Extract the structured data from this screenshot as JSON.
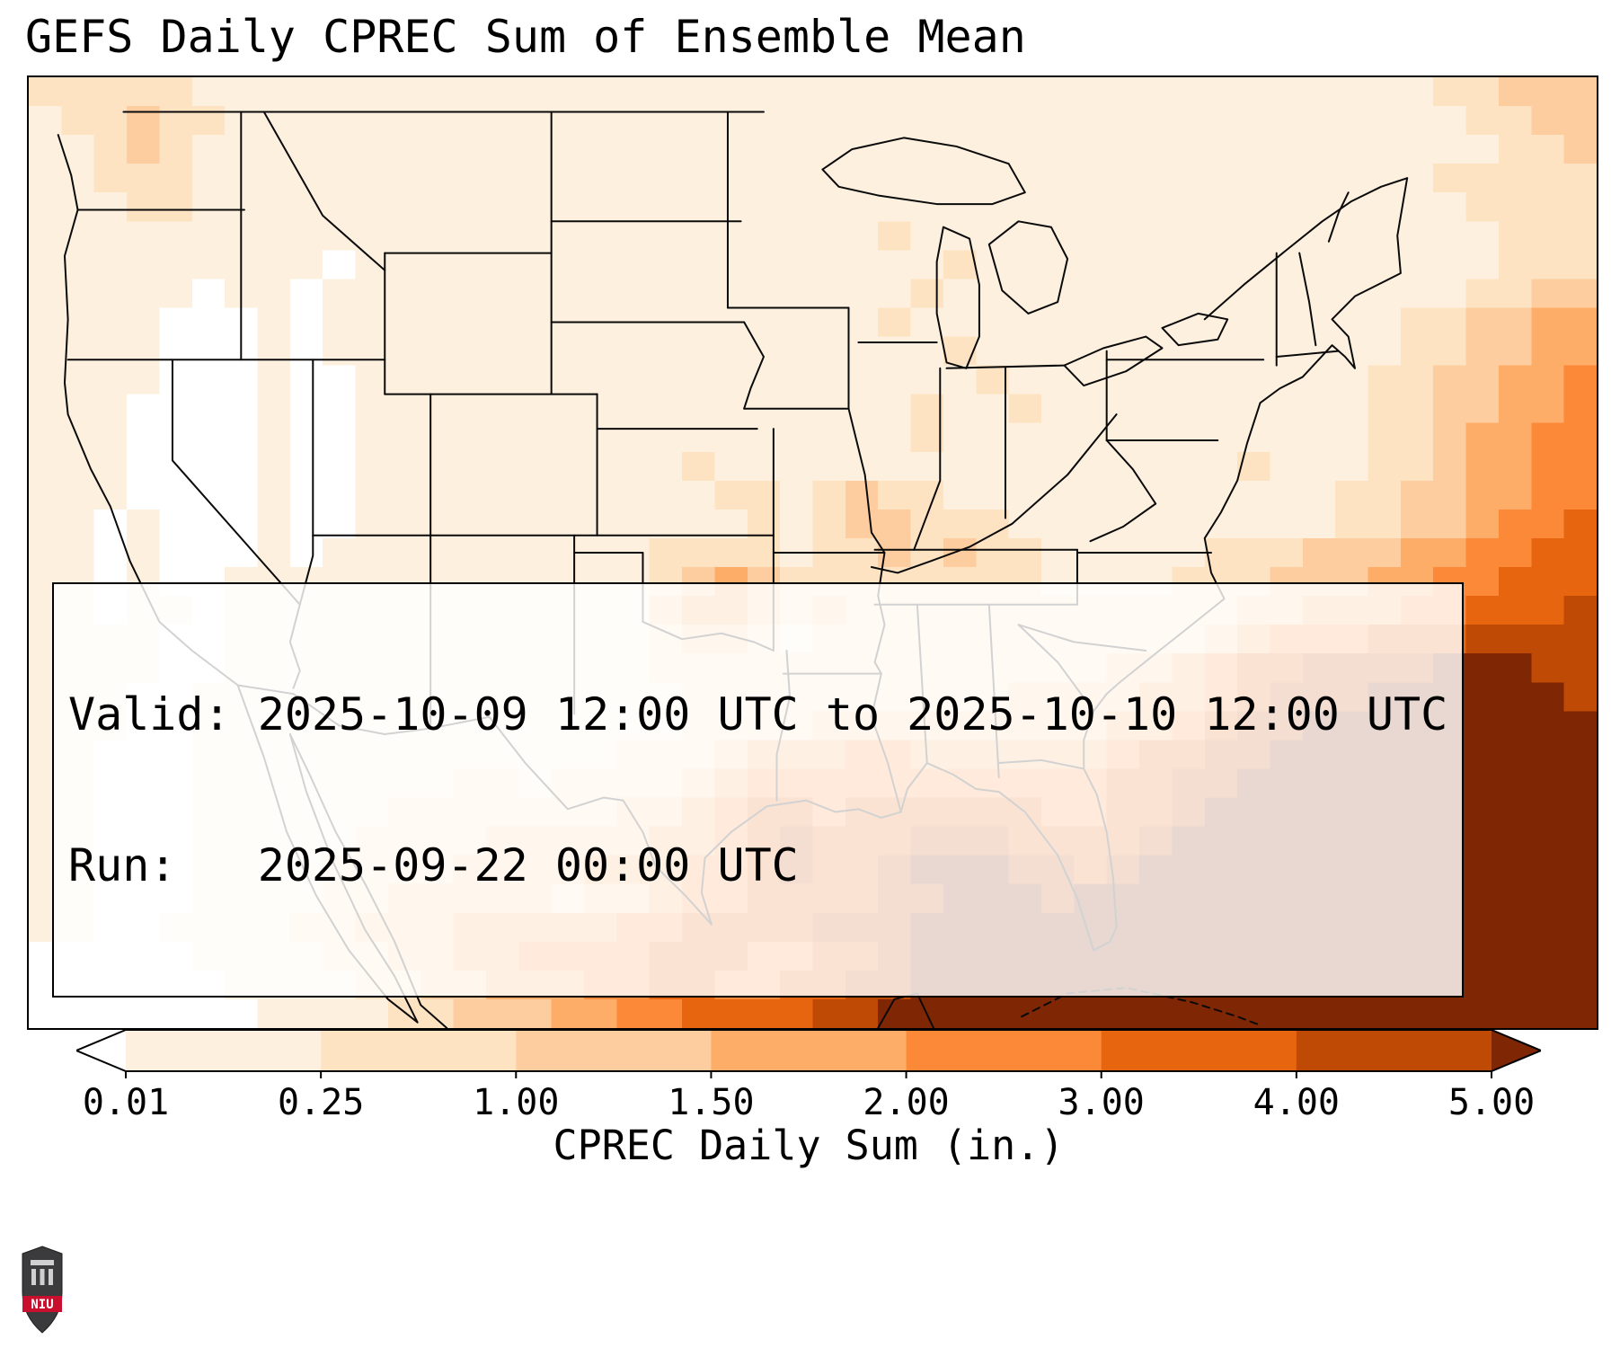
{
  "title": "GEFS Daily CPREC Sum of Ensemble Mean",
  "info_box": {
    "line1": "Valid: 2025-10-09 12:00 UTC to 2025-10-10 12:00 UTC",
    "line2": "Run:   2025-09-22 00:00 UTC"
  },
  "colorbar": {
    "label": "CPREC Daily Sum (in.)",
    "ticks": [
      "0.01",
      "0.25",
      "1.00",
      "1.50",
      "2.00",
      "3.00",
      "4.00",
      "5.00"
    ]
  },
  "logo": {
    "text": "NIU",
    "shield_color": "#3b3b3d",
    "band_color": "#c8102e"
  },
  "chart_data": {
    "type": "heatmap",
    "title": "GEFS Daily CPREC Sum of Ensemble Mean",
    "units": "in.",
    "colorbar_label": "CPREC Daily Sum (in.)",
    "colorbar_boundaries": [
      0.01,
      0.25,
      1.0,
      1.5,
      2.0,
      3.0,
      4.0,
      5.0
    ],
    "colorbar_extend": "both",
    "level_values": [
      "<0.01",
      "0.01-0.25",
      "0.25-1.00",
      "1.00-1.50",
      "1.50-2.00",
      "2.00-3.00",
      "3.00-4.00",
      "4.00-5.00",
      ">5.00"
    ],
    "level_colors": [
      "#ffffff",
      "#fdf0df",
      "#fee3c3",
      "#fdcd9f",
      "#fdad68",
      "#fb8938",
      "#e8650f",
      "#bf4a05",
      "#7f2704"
    ],
    "grid_rows": [
      "222221111111111111111111111111111111111111122333",
      "122322111111111111111111111111111111111111112233",
      "112321111111111111111111111111111111111111111223",
      "112221111111111111111111111111111111111111122222",
      "111221111111111111111111111111111111111111112222",
      "111111111111111111111111112111111111111111111222",
      "111111111011111111111111111121111111111111111222",
      "111110110111111111111111111211111111111111112233",
      "111100010111111111111111112111111111111111223344",
      "111100010111111111111111111121111111111111223344",
      "111100010011111111111111111112111111111112233445",
      "111000010011111111111111111211211111111112233445",
      "111000010011111111111111111211111111111112234455",
      "111000010011111111112111111111111111121112234455",
      "111000010011111111111221232211111111111122334455",
      "110100010011111111111121233222111111111122334556",
      "110100010111111111122221223232211111222333445566",
      "110100111111111111123432222222211112223334455666",
      "110110111111111111134432322222222222233444556667",
      "111100111111111111123321222222222222345556667777",
      "111100111111111111122222222222222334566777788877",
      "111001111111111111112222222222333344567778888887",
      "111001111111111111112222333333333445677888888888",
      "110001111111111111222344455444444566778888888888",
      "110001111111122122223455555555555667788888888888",
      "110001111112222222334566566666655667888888888888",
      "110001111122223333344567666777666678888888888888",
      "110001111222233334445567667888776788888888888888",
      "110001111223333323345566667788878888888888888888",
      "110011112233344444556666777888888888888888888888",
      "000001111223344555566655667888888888888888888888",
      "000000111122334445566556677888888888888888888888",
      "000000011112233344556666778888888888888888888888"
    ]
  }
}
